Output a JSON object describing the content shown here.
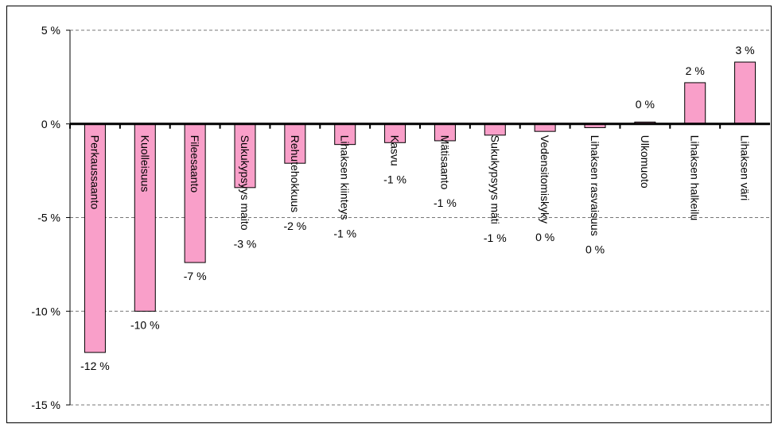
{
  "chart_data": {
    "type": "bar",
    "categories": [
      "Perkaussaanto",
      "Kuolleisuus",
      "Fileesaanto",
      "Sukukypsyys maito",
      "Rehutehokkuus",
      "Lihaksen kiinteys",
      "Kasvu",
      "Mätisaanto",
      "Sukukypsyys mäti",
      "Vedensitomiskyky",
      "Lihaksen rasvaisuus",
      "Ulkomuoto",
      "Lihaksen halkeilu",
      "Lihaksen väri"
    ],
    "values": [
      -12.2,
      -10.0,
      -7.4,
      -3.4,
      -2.1,
      -1.1,
      -1.0,
      -0.9,
      -0.6,
      -0.4,
      -0.2,
      0.1,
      2.2,
      3.3
    ],
    "value_labels": [
      "-12 %",
      "-10 %",
      "-7 %",
      "-3 %",
      "-2 %",
      "-1 %",
      "-1 %",
      "-1 %",
      "-1 %",
      "0 %",
      "0 %",
      "0 %",
      "2 %",
      "3 %"
    ],
    "color": "#f99fc9",
    "ylim": [
      -15,
      5
    ],
    "yticks": [
      {
        "value": -15,
        "label": "-15 %"
      },
      {
        "value": -10,
        "label": "-10 %"
      },
      {
        "value": -5,
        "label": "-5 %"
      },
      {
        "value": 0,
        "label": "0 %"
      },
      {
        "value": 5,
        "label": "5 %"
      }
    ],
    "grid": true
  }
}
